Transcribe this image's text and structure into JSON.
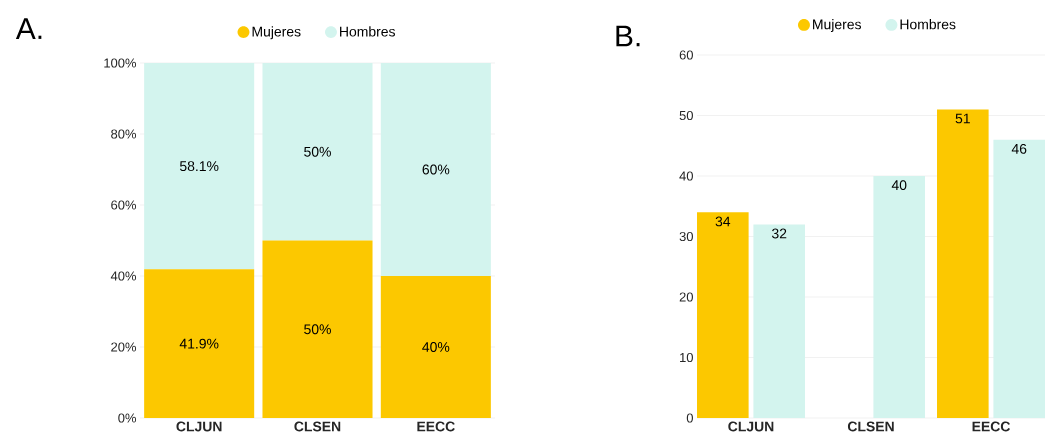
{
  "chart_data": [
    {
      "type": "bar",
      "title": "A.",
      "categories": [
        "CLJUN",
        "CLSEN",
        "EECC"
      ],
      "stacked": true,
      "series": [
        {
          "name": "Mujeres",
          "color": "#fcc800",
          "values": [
            41.9,
            50,
            40
          ],
          "value_labels": [
            "41.9%",
            "50%",
            "40%"
          ]
        },
        {
          "name": "Hombres",
          "color": "#d3f4ee",
          "values": [
            58.1,
            50,
            60
          ],
          "value_labels": [
            "58.1%",
            "50%",
            "60%"
          ]
        }
      ],
      "ylim": [
        0,
        100
      ],
      "yticks": [
        {
          "value": 0,
          "label": "0%"
        },
        {
          "value": 20,
          "label": "20%"
        },
        {
          "value": 40,
          "label": "40%"
        },
        {
          "value": 60,
          "label": "60%"
        },
        {
          "value": 80,
          "label": "80%"
        },
        {
          "value": 100,
          "label": "100%"
        }
      ],
      "grid": "y",
      "legend": "top"
    },
    {
      "type": "bar",
      "title": "B.",
      "categories": [
        "CLJUN",
        "CLSEN",
        "EECC"
      ],
      "series": [
        {
          "name": "Mujeres",
          "color": "#fcc800",
          "values": [
            34,
            null,
            51
          ]
        },
        {
          "name": "Hombres",
          "color": "#d3f4ee",
          "values": [
            32,
            40,
            46
          ]
        }
      ],
      "ylim": [
        0,
        60
      ],
      "yticks": [
        0,
        10,
        20,
        30,
        40,
        50,
        60
      ],
      "grid": "y",
      "legend": "top",
      "data_labels": true
    }
  ]
}
